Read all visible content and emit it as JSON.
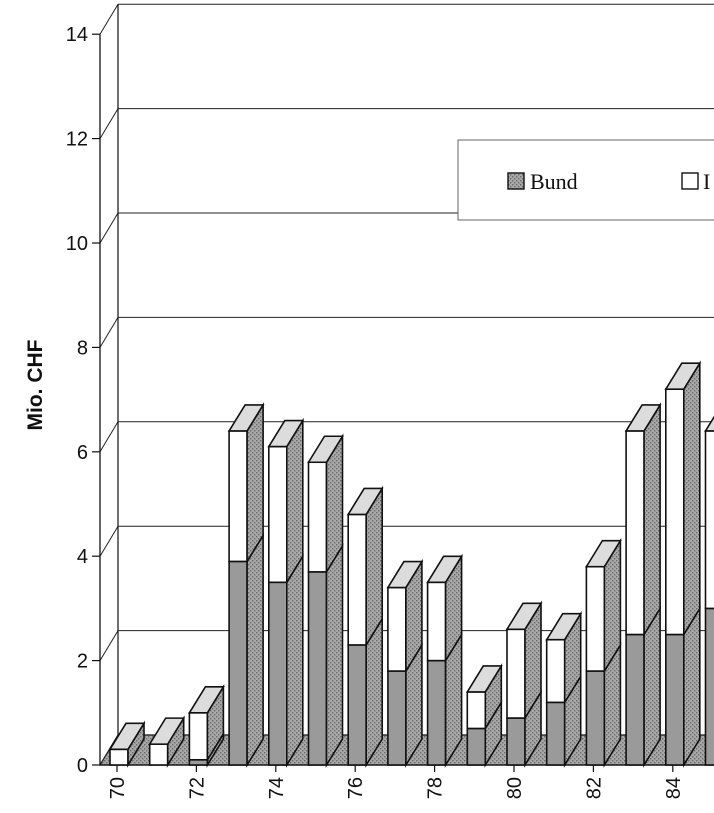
{
  "chart_data": {
    "type": "bar",
    "stacked": true,
    "ylabel": "Mio. CHF",
    "ylim": [
      0,
      14
    ],
    "y_ticks": [
      "0",
      "2",
      "4",
      "6",
      "8",
      "10",
      "12",
      "14"
    ],
    "x_tick_labels": [
      "70",
      "72",
      "74",
      "76",
      "78",
      "80",
      "82",
      "84"
    ],
    "categories": [
      "70",
      "71",
      "72",
      "73",
      "74",
      "75",
      "76",
      "77",
      "78",
      "79",
      "80",
      "81",
      "82",
      "83",
      "84",
      "85"
    ],
    "series": [
      {
        "name": "Bund",
        "values": [
          0,
          0,
          0.1,
          3.9,
          3.5,
          3.7,
          2.3,
          1.8,
          2.0,
          0.7,
          0.9,
          1.2,
          1.8,
          2.5,
          2.5,
          3.0
        ]
      },
      {
        "name": "",
        "values": [
          0.3,
          0.4,
          0.9,
          2.5,
          2.6,
          2.1,
          2.5,
          1.6,
          1.5,
          0.7,
          1.7,
          1.2,
          2.0,
          3.9,
          4.7,
          3.4
        ]
      }
    ],
    "legend": {
      "placement": "top-right",
      "entries": [
        "Bund",
        "I"
      ]
    },
    "grid": true,
    "colors": {
      "bund_fill": "#9a9a9a",
      "other_fill": "#ffffff",
      "top_face": "#dcdcdc",
      "outline": "#111111",
      "gridline": "#222222"
    }
  }
}
